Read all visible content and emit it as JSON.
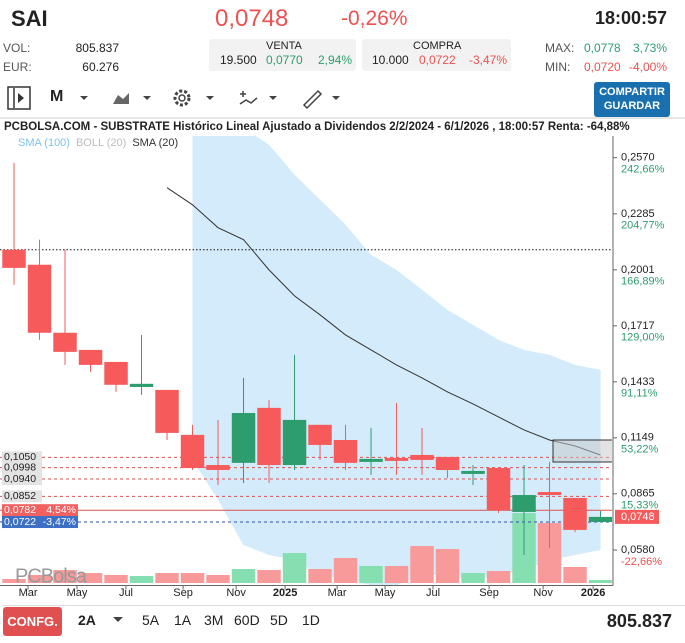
{
  "header": {
    "ticker": "SAI",
    "price": "0,0748",
    "change": "-0,26%",
    "time": "18:00:57"
  },
  "stats": {
    "vol_label": "VOL:",
    "vol": "805.837",
    "eur_label": "EUR:",
    "eur": "60.276",
    "max_label": "MAX:",
    "max": "0,0778",
    "max_pct": "3,73%",
    "min_label": "MIN:",
    "min": "0,0720",
    "min_pct": "-4,00%"
  },
  "orders": [
    {
      "title": "VENTA",
      "qty": "19.500",
      "price": "0,0770",
      "pct": "2,94%"
    },
    {
      "title": "COMPRA",
      "qty": "10.000",
      "price": "0,0722",
      "pct": "-3,47%"
    }
  ],
  "toolbar": {
    "period": "M",
    "button": [
      "COMPARTIR",
      "GUARDAR"
    ]
  },
  "chart_data": {
    "type": "candlestick",
    "title": "PCBOLSA.COM - SUBSTRATE Histórico Lineal Ajustado a Dividendos 2/2/2024 - 6/1/2026 , 18:00:57 Renta: -64,88%",
    "watermark": "PCBolsa",
    "x": [
      0,
      1,
      2,
      3,
      4,
      5,
      6,
      7,
      8,
      9,
      10,
      11,
      12,
      13,
      14,
      15,
      16,
      17,
      18,
      19,
      20,
      21,
      22,
      23
    ],
    "xlim": [
      -0.55,
      23.45
    ],
    "xticks": [
      {
        "value": 0.55,
        "label": "Mar"
      },
      {
        "value": 2.47,
        "label": "May"
      },
      {
        "value": 4.39,
        "label": "Jul"
      },
      {
        "value": 6.63,
        "label": "Sep"
      },
      {
        "value": 8.71,
        "label": "Nov"
      },
      {
        "value": 10.63,
        "label": "2025"
      },
      {
        "value": 12.67,
        "label": "Mar"
      },
      {
        "value": 14.55,
        "label": "May"
      },
      {
        "value": 16.43,
        "label": "Jul"
      },
      {
        "value": 18.63,
        "label": "Sep"
      },
      {
        "value": 20.75,
        "label": "Nov"
      },
      {
        "value": 22.71,
        "label": "2026"
      }
    ],
    "open": [
      0.2103,
      0.2027,
      0.1682,
      0.1595,
      0.1534,
      0.1407,
      0.1392,
      0.1164,
      0.1011,
      0.1022,
      0.1301,
      0.1011,
      0.1215,
      0.1138,
      0.1027,
      0.1047,
      0.1062,
      0.1052,
      0.0966,
      0.0996,
      0.0773,
      0.0874,
      0.0844,
      0.0722
    ],
    "high": [
      0.2544,
      0.2154,
      0.2103,
      0.1595,
      0.1534,
      0.1671,
      0.1392,
      0.1215,
      0.124,
      0.1453,
      0.1341,
      0.157,
      0.1215,
      0.1215,
      0.1199,
      0.1326,
      0.1199,
      0.1052,
      0.1011,
      0.0996,
      0.1011,
      0.1027,
      0.0844,
      0.0778
    ],
    "low": [
      0.1925,
      0.1646,
      0.1519,
      0.1484,
      0.1382,
      0.1367,
      0.1138,
      0.0986,
      0.091,
      0.092,
      0.092,
      0.0986,
      0.1037,
      0.0986,
      0.0961,
      0.0961,
      0.0961,
      0.0945,
      0.091,
      0.0768,
      0.0555,
      0.059,
      0.0671,
      0.072
    ],
    "close": [
      0.2011,
      0.1682,
      0.1585,
      0.1519,
      0.1418,
      0.1423,
      0.1174,
      0.0996,
      0.0986,
      0.1275,
      0.1011,
      0.124,
      0.1113,
      0.1022,
      0.1042,
      0.1032,
      0.1037,
      0.0986,
      0.0981,
      0.0783,
      0.0859,
      0.0859,
      0.0682,
      0.0748
    ],
    "up_color": "#2e9d6e",
    "down_color": "#f65a5a",
    "volumes": [
      4,
      8,
      13,
      10,
      8,
      7,
      10,
      10,
      8,
      14,
      13,
      30,
      14,
      25,
      17,
      17,
      37,
      34,
      10,
      12,
      70,
      60,
      16,
      3
    ],
    "volume_lim": [
      0,
      80
    ],
    "volume_up_color": "#86dfb0",
    "volume_down_color": "#f99a9a",
    "ylim": [
      0.04,
      0.268
    ],
    "yticks": [
      {
        "value": 0.257,
        "label": "0,2570"
      },
      {
        "value": 0.2285,
        "label": "0,2285"
      },
      {
        "value": 0.2001,
        "label": "0,2001"
      },
      {
        "value": 0.1717,
        "label": "0,1717"
      },
      {
        "value": 0.1433,
        "label": "0,1433"
      },
      {
        "value": 0.1149,
        "label": "0,1149"
      },
      {
        "value": 0.0865,
        "label": "0,0865"
      },
      {
        "value": 0.058,
        "label": "0,0580"
      }
    ],
    "y2lim": [
      -46.67,
      257.33
    ],
    "y2ticks": [
      {
        "value": 242.66,
        "label": "242,66%"
      },
      {
        "value": 204.77,
        "label": "204,77%"
      },
      {
        "value": 166.89,
        "label": "166,89%"
      },
      {
        "value": 129.0,
        "label": "129,00%"
      },
      {
        "value": 91.11,
        "label": "91,11%"
      },
      {
        "value": 53.22,
        "label": "53,22%"
      },
      {
        "value": 15.33,
        "label": "15,33%"
      },
      {
        "value": -22.66,
        "label": "-22,66%"
      }
    ],
    "grid": false,
    "series": [
      {
        "name": "SMA (100)",
        "color": "#7cc3ee",
        "values": [
          null,
          null,
          null,
          null,
          null,
          null,
          null,
          null,
          null,
          null,
          null,
          null,
          null,
          null,
          null,
          null,
          null,
          null,
          null,
          null,
          null,
          null,
          null,
          null
        ]
      },
      {
        "name": "SMA (20)",
        "color": "#333333",
        "values": [
          null,
          null,
          null,
          null,
          null,
          null,
          0.2418,
          0.2331,
          0.2215,
          0.2154,
          0.2001,
          0.1869,
          0.1773,
          0.1671,
          0.1595,
          0.1519,
          0.1453,
          0.1382,
          0.1321,
          0.1255,
          0.1189,
          0.1138,
          0.1108,
          0.1062
        ]
      }
    ],
    "bands": [
      {
        "name": "BOLL (20)",
        "color": "#d3ebfa",
        "upper": [
          null,
          null,
          null,
          null,
          null,
          null,
          null,
          0.275,
          0.28,
          0.272,
          0.2636,
          0.2484,
          0.2357,
          0.223,
          0.2077,
          0.2001,
          0.19,
          0.1798,
          0.1722,
          0.1646,
          0.1595,
          0.157,
          0.1519,
          0.1494
        ],
        "lower": [
          null,
          null,
          null,
          null,
          null,
          null,
          null,
          0.1037,
          0.0834,
          0.0605,
          0.0555,
          0.0529,
          0.0453,
          0.0428,
          0.0402,
          0.0402,
          0.0453,
          0.0453,
          0.0428,
          0.0453,
          0.0478,
          0.0529,
          0.0555,
          0.058
        ]
      }
    ],
    "levels": [
      {
        "value": 0.2103,
        "color": "#111111",
        "style": "dotted"
      },
      {
        "value": 0.105,
        "label": "0,1050",
        "color": "#e05252",
        "style": "dashed"
      },
      {
        "value": 0.0998,
        "label": "0,0998",
        "color": "#e05252",
        "style": "dashed"
      },
      {
        "value": 0.094,
        "label": "0,0940",
        "color": "#e05252",
        "style": "dashed"
      },
      {
        "value": 0.0852,
        "label": "0,0852",
        "color": "#e05252",
        "style": "dashed"
      },
      {
        "value": 0.0782,
        "label": "0,0782",
        "pct_label": "4,54%",
        "color": "#e05252",
        "style": "solid"
      },
      {
        "value": 0.0722,
        "label": "0,0722",
        "pct_label": "-3,47%",
        "color": "#2f4fb0",
        "style": "dashed"
      }
    ],
    "last_price": {
      "value": 0.0748,
      "label": "0,0748",
      "color": "#f65a5a"
    }
  },
  "footer": {
    "config": "CONFG.",
    "ranges": [
      "2A",
      "5A",
      "1A",
      "3M",
      "60D",
      "5D",
      "1D"
    ],
    "volume": "805.837"
  }
}
